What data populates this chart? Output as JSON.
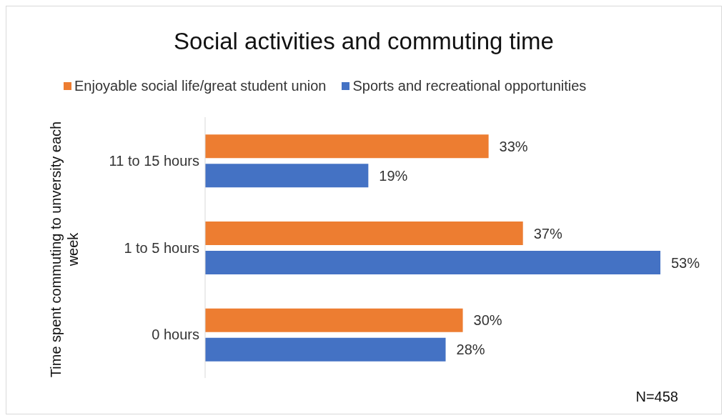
{
  "chart_data": {
    "type": "bar",
    "orientation": "horizontal",
    "title": "Social activities and commuting time",
    "ylabel": "Time spent commuting to unversity each week",
    "categories": [
      "11 to 15 hours",
      "1 to 5 hours",
      "0 hours"
    ],
    "series": [
      {
        "name": "Enjoyable social life/great student union",
        "color": "#ed7d31",
        "values": [
          33,
          37,
          30
        ],
        "value_labels": [
          "33%",
          "37%",
          "30%"
        ]
      },
      {
        "name": "Sports and recreational opportunities",
        "color": "#4472c4",
        "values": [
          19,
          53,
          28
        ],
        "value_labels": [
          "19%",
          "53%",
          "28%"
        ]
      }
    ],
    "legend": "top left",
    "tick_labels": "y",
    "annotations": [
      "N=458"
    ]
  }
}
